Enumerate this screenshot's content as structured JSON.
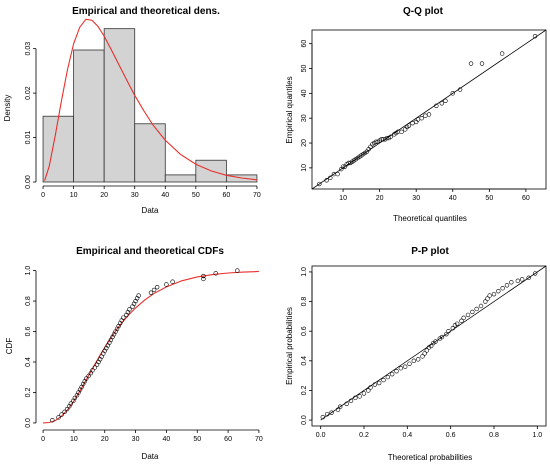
{
  "chart_data": [
    {
      "type": "bar",
      "id": "density",
      "title": "Empirical and theoretical dens.",
      "xlabel": "Data",
      "ylabel": "Density",
      "xlim": [
        -1,
        71
      ],
      "ylim": [
        0,
        0.036
      ],
      "xticks": [
        0,
        10,
        20,
        30,
        40,
        50,
        60,
        70
      ],
      "yticks": [
        0.0,
        0.01,
        0.02,
        0.03
      ],
      "ytick_labels": [
        "0.00",
        "0.01",
        "0.02",
        "0.03"
      ],
      "bins": [
        {
          "x0": 0,
          "x1": 10,
          "density": 0.0148
        },
        {
          "x0": 10,
          "x1": 20,
          "density": 0.0297
        },
        {
          "x0": 20,
          "x1": 30,
          "density": 0.0345
        },
        {
          "x0": 30,
          "x1": 40,
          "density": 0.0131
        },
        {
          "x0": 40,
          "x1": 50,
          "density": 0.0016
        },
        {
          "x0": 50,
          "x1": 60,
          "density": 0.0049
        },
        {
          "x0": 60,
          "x1": 70,
          "density": 0.0016
        }
      ],
      "curve": {
        "color": "#e8302c",
        "x": [
          0.5,
          2,
          4,
          6,
          8,
          10,
          12,
          14,
          16,
          18,
          20,
          22,
          24,
          26,
          28,
          30,
          33,
          36,
          40,
          45,
          50,
          55,
          60,
          65,
          70
        ],
        "y": [
          0.0003,
          0.0035,
          0.0105,
          0.0182,
          0.0253,
          0.0311,
          0.0348,
          0.0366,
          0.0364,
          0.035,
          0.0328,
          0.0302,
          0.0275,
          0.0248,
          0.0221,
          0.0195,
          0.016,
          0.0128,
          0.0094,
          0.0062,
          0.004,
          0.0025,
          0.0015,
          0.0009,
          0.0005
        ]
      },
      "bar_fill": "#d3d3d3"
    },
    {
      "type": "scatter",
      "id": "qq",
      "title": "Q-Q plot",
      "xlabel": "Theoretical quantiles",
      "ylabel": "Empirical quantiles",
      "xlim": [
        1.5,
        65.5
      ],
      "ylim": [
        1.5,
        65.5
      ],
      "xticks": [
        10,
        20,
        30,
        40,
        50,
        60
      ],
      "yticks": [
        10,
        20,
        30,
        40,
        50,
        60
      ],
      "reference_line": [
        [
          0,
          0
        ],
        [
          70,
          70
        ]
      ],
      "points": [
        [
          3.5,
          3.5
        ],
        [
          5.5,
          5.0
        ],
        [
          6.5,
          6.0
        ],
        [
          7.5,
          7.5
        ],
        [
          8.5,
          7.5
        ],
        [
          9.5,
          9.5
        ],
        [
          10.0,
          10.5
        ],
        [
          10.5,
          10.5
        ],
        [
          11.0,
          11.5
        ],
        [
          11.5,
          12.0
        ],
        [
          12.0,
          12.0
        ],
        [
          12.5,
          12.5
        ],
        [
          13.0,
          13.0
        ],
        [
          13.5,
          13.5
        ],
        [
          14.0,
          14.0
        ],
        [
          14.5,
          14.5
        ],
        [
          15.0,
          15.0
        ],
        [
          15.5,
          15.5
        ],
        [
          16.0,
          16.0
        ],
        [
          16.5,
          16.5
        ],
        [
          17.0,
          17.5
        ],
        [
          17.5,
          18.5
        ],
        [
          18.0,
          19.5
        ],
        [
          18.5,
          20.0
        ],
        [
          19.0,
          20.5
        ],
        [
          19.5,
          20.5
        ],
        [
          20.0,
          21.0
        ],
        [
          20.5,
          21.5
        ],
        [
          21.0,
          21.5
        ],
        [
          21.5,
          21.5
        ],
        [
          22.0,
          22.0
        ],
        [
          22.5,
          22.0
        ],
        [
          23.0,
          22.5
        ],
        [
          24.0,
          23.5
        ],
        [
          24.5,
          24.0
        ],
        [
          25.0,
          24.5
        ],
        [
          26.0,
          24.5
        ],
        [
          27.0,
          25.5
        ],
        [
          27.5,
          26.5
        ],
        [
          28.0,
          27.0
        ],
        [
          29.0,
          28.0
        ],
        [
          30.0,
          28.5
        ],
        [
          30.5,
          29.5
        ],
        [
          31.5,
          30.0
        ],
        [
          32.5,
          31.0
        ],
        [
          33.5,
          31.5
        ],
        [
          35.5,
          35.0
        ],
        [
          37.0,
          36.0
        ],
        [
          38.0,
          37.0
        ],
        [
          40.0,
          40.0
        ],
        [
          42.0,
          41.5
        ],
        [
          45.0,
          52.0
        ],
        [
          48.0,
          52.0
        ],
        [
          53.5,
          56.0
        ],
        [
          62.5,
          63.0
        ]
      ]
    },
    {
      "type": "line",
      "id": "cdf",
      "title": "Empirical and theoretical CDFs",
      "xlabel": "Data",
      "ylabel": "CDF",
      "xlim": [
        -1,
        71
      ],
      "ylim": [
        -0.02,
        1.03
      ],
      "xticks": [
        0,
        10,
        20,
        30,
        40,
        50,
        60,
        70
      ],
      "yticks": [
        0.0,
        0.2,
        0.4,
        0.6,
        0.8,
        1.0
      ],
      "ytick_labels": [
        "0.0",
        "0.2",
        "0.4",
        "0.6",
        "0.8",
        "1.0"
      ],
      "curve": {
        "color": "#e8302c",
        "x": [
          0,
          2,
          4,
          6,
          8,
          10,
          12,
          14,
          16,
          18,
          20,
          22,
          24,
          26,
          28,
          30,
          33,
          36,
          40,
          45,
          50,
          55,
          60,
          65,
          70
        ],
        "y": [
          0.0,
          0.003,
          0.016,
          0.045,
          0.088,
          0.145,
          0.211,
          0.283,
          0.356,
          0.428,
          0.496,
          0.559,
          0.617,
          0.668,
          0.714,
          0.755,
          0.807,
          0.85,
          0.893,
          0.933,
          0.958,
          0.974,
          0.984,
          0.99,
          0.994
        ]
      },
      "points": [
        [
          3,
          0.018
        ],
        [
          5,
          0.036
        ],
        [
          6,
          0.055
        ],
        [
          7,
          0.073
        ],
        [
          7.8,
          0.091
        ],
        [
          8.5,
          0.109
        ],
        [
          9,
          0.127
        ],
        [
          9.8,
          0.145
        ],
        [
          10.3,
          0.164
        ],
        [
          11,
          0.182
        ],
        [
          11.5,
          0.2
        ],
        [
          12,
          0.218
        ],
        [
          12.5,
          0.236
        ],
        [
          13,
          0.255
        ],
        [
          13.5,
          0.273
        ],
        [
          14,
          0.291
        ],
        [
          14.8,
          0.309
        ],
        [
          15.5,
          0.327
        ],
        [
          16,
          0.345
        ],
        [
          16.8,
          0.364
        ],
        [
          17.5,
          0.382
        ],
        [
          18,
          0.4
        ],
        [
          18.5,
          0.418
        ],
        [
          19,
          0.436
        ],
        [
          19.5,
          0.455
        ],
        [
          20,
          0.473
        ],
        [
          20.5,
          0.491
        ],
        [
          21,
          0.509
        ],
        [
          21.5,
          0.527
        ],
        [
          22,
          0.545
        ],
        [
          22.5,
          0.564
        ],
        [
          23,
          0.582
        ],
        [
          23.5,
          0.6
        ],
        [
          24,
          0.618
        ],
        [
          24.5,
          0.636
        ],
        [
          25,
          0.655
        ],
        [
          25.5,
          0.673
        ],
        [
          26,
          0.691
        ],
        [
          27,
          0.709
        ],
        [
          27.5,
          0.727
        ],
        [
          28,
          0.745
        ],
        [
          29,
          0.764
        ],
        [
          29.5,
          0.782
        ],
        [
          30,
          0.8
        ],
        [
          30.5,
          0.818
        ],
        [
          31,
          0.836
        ],
        [
          35,
          0.855
        ],
        [
          36,
          0.873
        ],
        [
          37,
          0.891
        ],
        [
          40,
          0.909
        ],
        [
          42,
          0.927
        ],
        [
          52,
          0.945
        ],
        [
          52,
          0.964
        ],
        [
          56,
          0.982
        ],
        [
          63,
          1.0
        ]
      ]
    },
    {
      "type": "scatter",
      "id": "pp",
      "title": "P-P plot",
      "xlabel": "Theoretical probabilities",
      "ylabel": "Empirical probabilities",
      "xlim": [
        -0.04,
        1.04
      ],
      "ylim": [
        -0.04,
        1.04
      ],
      "xticks": [
        0.0,
        0.2,
        0.4,
        0.6,
        0.8,
        1.0
      ],
      "yticks": [
        0.0,
        0.2,
        0.4,
        0.6,
        0.8,
        1.0
      ],
      "tick_labels": [
        "0.0",
        "0.2",
        "0.4",
        "0.6",
        "0.8",
        "1.0"
      ],
      "reference_line": [
        [
          0,
          0
        ],
        [
          1.05,
          1.05
        ]
      ],
      "points": [
        [
          0.01,
          0.02
        ],
        [
          0.03,
          0.04
        ],
        [
          0.05,
          0.05
        ],
        [
          0.08,
          0.07
        ],
        [
          0.09,
          0.09
        ],
        [
          0.12,
          0.11
        ],
        [
          0.14,
          0.13
        ],
        [
          0.16,
          0.15
        ],
        [
          0.18,
          0.16
        ],
        [
          0.2,
          0.18
        ],
        [
          0.22,
          0.2
        ],
        [
          0.23,
          0.22
        ],
        [
          0.25,
          0.24
        ],
        [
          0.27,
          0.25
        ],
        [
          0.29,
          0.27
        ],
        [
          0.31,
          0.29
        ],
        [
          0.33,
          0.31
        ],
        [
          0.35,
          0.33
        ],
        [
          0.37,
          0.35
        ],
        [
          0.39,
          0.36
        ],
        [
          0.41,
          0.38
        ],
        [
          0.43,
          0.4
        ],
        [
          0.45,
          0.41
        ],
        [
          0.47,
          0.43
        ],
        [
          0.48,
          0.45
        ],
        [
          0.49,
          0.47
        ],
        [
          0.5,
          0.49
        ],
        [
          0.51,
          0.5
        ],
        [
          0.52,
          0.52
        ],
        [
          0.53,
          0.53
        ],
        [
          0.55,
          0.55
        ],
        [
          0.56,
          0.56
        ],
        [
          0.58,
          0.58
        ],
        [
          0.59,
          0.6
        ],
        [
          0.61,
          0.62
        ],
        [
          0.62,
          0.64
        ],
        [
          0.63,
          0.65
        ],
        [
          0.65,
          0.67
        ],
        [
          0.66,
          0.69
        ],
        [
          0.68,
          0.71
        ],
        [
          0.7,
          0.73
        ],
        [
          0.72,
          0.75
        ],
        [
          0.74,
          0.77
        ],
        [
          0.76,
          0.8
        ],
        [
          0.77,
          0.82
        ],
        [
          0.78,
          0.84
        ],
        [
          0.8,
          0.85
        ],
        [
          0.82,
          0.87
        ],
        [
          0.84,
          0.89
        ],
        [
          0.86,
          0.91
        ],
        [
          0.88,
          0.93
        ],
        [
          0.91,
          0.94
        ],
        [
          0.93,
          0.95
        ],
        [
          0.96,
          0.96
        ],
        [
          0.99,
          0.99
        ]
      ]
    }
  ]
}
